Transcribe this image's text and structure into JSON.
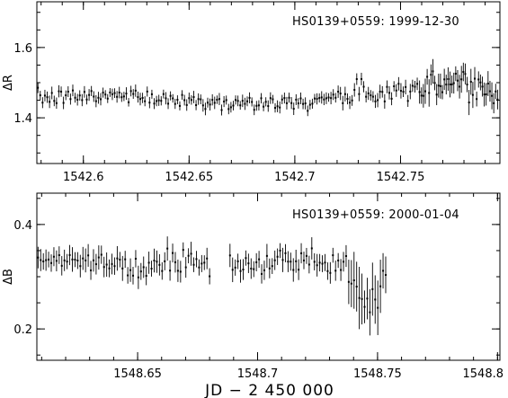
{
  "figure": {
    "xlabel": "JD − 2 450 000"
  },
  "chart_data": [
    {
      "type": "scatter",
      "annotation": "HS0139+0559:  1999-12-30",
      "ylabel": "ΔR",
      "xlim": [
        1542.578,
        1542.797
      ],
      "ylim": [
        1.73,
        1.27
      ],
      "inverted_y": true,
      "xticks": [
        1542.6,
        1542.65,
        1542.7,
        1542.75
      ],
      "xtick_labels": [
        "1542.6",
        "1542.65",
        "1542.7",
        "1542.75"
      ],
      "yticks": [
        1.4,
        1.6
      ],
      "ytick_labels": [
        "1.4",
        "1.6"
      ],
      "error_bars": true,
      "segments": [
        {
          "x_start": 1542.5785,
          "x_end": 1542.7195,
          "step": 0.0011,
          "y_points": [
            [
              1542.5785,
              1.455
            ],
            [
              1542.62,
              1.465
            ],
            [
              1542.66,
              1.445
            ],
            [
              1542.69,
              1.44
            ],
            [
              1542.7195,
              1.455
            ]
          ],
          "scatter": 0.022,
          "err": [
            0.012,
            0.018
          ]
        },
        {
          "x_start": 1542.7205,
          "x_end": 1542.758,
          "step": 0.0011,
          "y_points": [
            [
              1542.7205,
              1.46
            ],
            [
              1542.74,
              1.475
            ],
            [
              1542.758,
              1.475
            ]
          ],
          "scatter": 0.035,
          "err": [
            0.014,
            0.022
          ]
        },
        {
          "x_start": 1542.759,
          "x_end": 1542.7965,
          "step": 0.0009,
          "y_points": [
            [
              1542.759,
              1.475
            ],
            [
              1542.78,
              1.5
            ],
            [
              1542.7965,
              1.47
            ]
          ],
          "scatter": 0.06,
          "err": [
            0.02,
            0.04
          ]
        }
      ]
    },
    {
      "type": "scatter",
      "annotation": "HS0139+0559:  2000-01-04",
      "ylabel": "ΔB",
      "xlim": [
        1548.608,
        1548.801
      ],
      "ylim": [
        0.46,
        0.14
      ],
      "inverted_y": true,
      "xticks": [
        1548.65,
        1548.7,
        1548.75,
        1548.8
      ],
      "xtick_labels": [
        "1548.65",
        "1548.7",
        "1548.75",
        "1548.8"
      ],
      "yticks": [
        0.2,
        0.4
      ],
      "ytick_labels": [
        "0.2",
        "0.4"
      ],
      "error_bars": true,
      "segments": [
        {
          "x_start": 1548.6085,
          "x_end": 1548.681,
          "step": 0.0011,
          "y_points": [
            [
              1548.6085,
              0.33
            ],
            [
              1548.63,
              0.335
            ],
            [
              1548.65,
              0.315
            ],
            [
              1548.665,
              0.325
            ],
            [
              1548.681,
              0.32
            ]
          ],
          "scatter": 0.022,
          "err": [
            0.014,
            0.024
          ]
        },
        {
          "x_start": 1548.6885,
          "x_end": 1548.737,
          "step": 0.0011,
          "y_points": [
            [
              1548.6885,
              0.315
            ],
            [
              1548.705,
              0.325
            ],
            [
              1548.72,
              0.33
            ],
            [
              1548.737,
              0.32
            ]
          ],
          "scatter": 0.022,
          "err": [
            0.014,
            0.024
          ]
        },
        {
          "x_start": 1548.738,
          "x_end": 1548.7535,
          "step": 0.0011,
          "y_points": [
            [
              1548.738,
              0.29
            ],
            [
              1548.745,
              0.25
            ],
            [
              1548.75,
              0.27
            ],
            [
              1548.7535,
              0.31
            ]
          ],
          "scatter": 0.03,
          "err": [
            0.03,
            0.06
          ]
        }
      ]
    }
  ]
}
